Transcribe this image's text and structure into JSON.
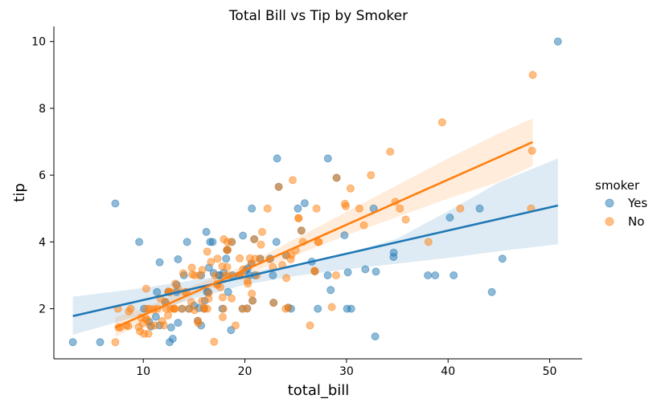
{
  "chart_data": {
    "type": "scatter",
    "title": "Total Bill vs Tip by Smoker",
    "xlabel": "total_bill",
    "ylabel": "tip",
    "xlim": [
      1.2,
      53.2
    ],
    "ylim": [
      0.5,
      10.45
    ],
    "xticks": [
      10,
      20,
      30,
      40,
      50
    ],
    "yticks": [
      2,
      4,
      6,
      8,
      10
    ],
    "grid": false,
    "legend": {
      "title": "smoker",
      "placement": "right"
    },
    "series": [
      {
        "name": "Yes",
        "color": "#1f77b4",
        "points": [
          [
            3.07,
            1.0
          ],
          [
            5.75,
            1.0
          ],
          [
            7.25,
            5.15
          ],
          [
            9.6,
            4.0
          ],
          [
            10.07,
            2.0
          ],
          [
            10.59,
            1.61
          ],
          [
            10.77,
            1.47
          ],
          [
            11.24,
            1.76
          ],
          [
            11.35,
            2.5
          ],
          [
            11.61,
            3.39
          ],
          [
            11.59,
            1.5
          ],
          [
            12.16,
            2.2
          ],
          [
            12.46,
            2.5
          ],
          [
            12.6,
            1.0
          ],
          [
            12.9,
            1.1
          ],
          [
            12.74,
            1.44
          ],
          [
            13.27,
            2.5
          ],
          [
            13.28,
            2.72
          ],
          [
            13.42,
            3.48
          ],
          [
            13.42,
            1.58
          ],
          [
            13.81,
            2.0
          ],
          [
            14.0,
            3.0
          ],
          [
            14.31,
            4.0
          ],
          [
            14.48,
            2.0
          ],
          [
            15.01,
            2.09
          ],
          [
            15.36,
            1.64
          ],
          [
            15.69,
            3.0
          ],
          [
            15.69,
            1.5
          ],
          [
            15.48,
            2.02
          ],
          [
            16.0,
            2.0
          ],
          [
            16.04,
            2.24
          ],
          [
            16.27,
            2.5
          ],
          [
            16.4,
            2.5
          ],
          [
            16.47,
            3.23
          ],
          [
            16.58,
            4.0
          ],
          [
            16.93,
            3.07
          ],
          [
            16.21,
            4.3
          ],
          [
            16.82,
            4.0
          ],
          [
            17.46,
            3.0
          ],
          [
            17.51,
            3.0
          ],
          [
            17.78,
            2.0
          ],
          [
            17.92,
            3.08
          ],
          [
            18.15,
            3.5
          ],
          [
            18.24,
            3.76
          ],
          [
            18.29,
            3.76
          ],
          [
            18.35,
            2.5
          ],
          [
            18.64,
            1.36
          ],
          [
            18.71,
            4.0
          ],
          [
            18.78,
            3.0
          ],
          [
            19.44,
            3.0
          ],
          [
            19.81,
            4.19
          ],
          [
            19.77,
            2.0
          ],
          [
            20.08,
            3.15
          ],
          [
            20.23,
            2.01
          ],
          [
            20.29,
            3.21
          ],
          [
            20.45,
            3.0
          ],
          [
            20.65,
            3.35
          ],
          [
            20.69,
            5.0
          ],
          [
            20.76,
            2.24
          ],
          [
            21.01,
            3.0
          ],
          [
            20.92,
            4.08
          ],
          [
            21.5,
            3.5
          ],
          [
            22.49,
            3.5
          ],
          [
            22.76,
            3.0
          ],
          [
            22.82,
            2.18
          ],
          [
            23.1,
            4.0
          ],
          [
            23.33,
            5.65
          ],
          [
            23.17,
            6.5
          ],
          [
            24.06,
            3.6
          ],
          [
            24.27,
            2.03
          ],
          [
            24.55,
            2.0
          ],
          [
            25.21,
            5.0
          ],
          [
            25.56,
            4.34
          ],
          [
            25.89,
            5.16
          ],
          [
            26.59,
            3.41
          ],
          [
            26.88,
            3.12
          ],
          [
            27.18,
            2.0
          ],
          [
            28.15,
            3.0
          ],
          [
            28.17,
            6.5
          ],
          [
            28.44,
            2.56
          ],
          [
            29.03,
            5.92
          ],
          [
            29.8,
            4.2
          ],
          [
            30.06,
            2.0
          ],
          [
            30.14,
            3.09
          ],
          [
            30.46,
            2.0
          ],
          [
            31.85,
            3.18
          ],
          [
            32.68,
            5.0
          ],
          [
            32.83,
            1.17
          ],
          [
            32.9,
            3.11
          ],
          [
            34.63,
            3.55
          ],
          [
            34.65,
            3.68
          ],
          [
            38.01,
            3.0
          ],
          [
            38.73,
            3.0
          ],
          [
            40.17,
            4.73
          ],
          [
            40.55,
            3.0
          ],
          [
            43.11,
            5.0
          ],
          [
            44.3,
            2.5
          ],
          [
            45.35,
            3.5
          ],
          [
            50.81,
            10.0
          ]
        ]
      },
      {
        "name": "No",
        "color": "#ff7f0e",
        "points": [
          [
            7.25,
            1.0
          ],
          [
            7.51,
            2.0
          ],
          [
            7.56,
            1.44
          ],
          [
            7.74,
            1.44
          ],
          [
            8.35,
            1.5
          ],
          [
            8.52,
            1.48
          ],
          [
            8.58,
            1.92
          ],
          [
            8.77,
            2.0
          ],
          [
            9.55,
            1.45
          ],
          [
            9.68,
            1.32
          ],
          [
            9.78,
            1.73
          ],
          [
            9.94,
            1.56
          ],
          [
            10.07,
            1.25
          ],
          [
            10.27,
            1.71
          ],
          [
            10.29,
            2.6
          ],
          [
            10.33,
            2.0
          ],
          [
            10.34,
            1.66
          ],
          [
            10.51,
            1.25
          ],
          [
            10.63,
            2.0
          ],
          [
            10.65,
            1.5
          ],
          [
            11.02,
            1.98
          ],
          [
            11.17,
            1.5
          ],
          [
            11.38,
            2.0
          ],
          [
            11.69,
            2.31
          ],
          [
            11.87,
            1.63
          ],
          [
            12.03,
            1.5
          ],
          [
            12.16,
            2.2
          ],
          [
            12.26,
            2.0
          ],
          [
            12.43,
            1.8
          ],
          [
            12.48,
            2.52
          ],
          [
            12.54,
            2.5
          ],
          [
            12.66,
            2.5
          ],
          [
            12.69,
            2.0
          ],
          [
            13.0,
            2.0
          ],
          [
            13.03,
            2.0
          ],
          [
            13.13,
            2.0
          ],
          [
            13.16,
            2.75
          ],
          [
            13.39,
            2.61
          ],
          [
            13.81,
            2.0
          ],
          [
            13.94,
            3.06
          ],
          [
            14.07,
            2.5
          ],
          [
            14.26,
            2.5
          ],
          [
            14.52,
            2.0
          ],
          [
            14.73,
            2.2
          ],
          [
            14.78,
            3.23
          ],
          [
            14.83,
            3.02
          ],
          [
            15.04,
            1.96
          ],
          [
            15.06,
            3.0
          ],
          [
            15.36,
            1.64
          ],
          [
            15.42,
            1.57
          ],
          [
            15.53,
            3.0
          ],
          [
            15.77,
            2.23
          ],
          [
            15.81,
            3.16
          ],
          [
            15.98,
            2.03
          ],
          [
            16.0,
            2.0
          ],
          [
            16.29,
            3.71
          ],
          [
            16.31,
            2.0
          ],
          [
            16.43,
            2.3
          ],
          [
            16.45,
            2.47
          ],
          [
            16.66,
            3.4
          ],
          [
            16.97,
            1.01
          ],
          [
            17.07,
            3.0
          ],
          [
            17.26,
            2.74
          ],
          [
            17.29,
            2.71
          ],
          [
            17.31,
            3.5
          ],
          [
            17.59,
            2.64
          ],
          [
            17.78,
            3.27
          ],
          [
            17.81,
            2.34
          ],
          [
            17.82,
            1.75
          ],
          [
            17.89,
            2.0
          ],
          [
            17.92,
            4.08
          ],
          [
            18.04,
            3.0
          ],
          [
            18.24,
            3.76
          ],
          [
            18.26,
            3.25
          ],
          [
            18.28,
            4.0
          ],
          [
            18.29,
            3.76
          ],
          [
            18.43,
            3.0
          ],
          [
            18.69,
            2.31
          ],
          [
            18.71,
            4.0
          ],
          [
            19.08,
            1.5
          ],
          [
            19.44,
            3.0
          ],
          [
            19.49,
            3.51
          ],
          [
            19.65,
            3.0
          ],
          [
            19.77,
            2.0
          ],
          [
            19.82,
            3.18
          ],
          [
            20.23,
            2.01
          ],
          [
            20.27,
            2.83
          ],
          [
            20.29,
            2.75
          ],
          [
            20.49,
            3.51
          ],
          [
            20.65,
            3.35
          ],
          [
            20.69,
            2.45
          ],
          [
            20.76,
            2.24
          ],
          [
            20.92,
            4.08
          ],
          [
            21.01,
            3.5
          ],
          [
            21.16,
            3.0
          ],
          [
            21.5,
            3.5
          ],
          [
            21.58,
            3.92
          ],
          [
            21.7,
            4.3
          ],
          [
            22.23,
            5.0
          ],
          [
            22.42,
            3.48
          ],
          [
            22.75,
            3.25
          ],
          [
            22.82,
            2.18
          ],
          [
            23.33,
            5.65
          ],
          [
            23.68,
            3.31
          ],
          [
            24.01,
            2.0
          ],
          [
            24.08,
            2.92
          ],
          [
            24.06,
            3.6
          ],
          [
            24.27,
            2.03
          ],
          [
            24.52,
            3.48
          ],
          [
            24.59,
            3.61
          ],
          [
            24.71,
            5.85
          ],
          [
            25.0,
            3.75
          ],
          [
            25.28,
            4.71
          ],
          [
            25.29,
            4.71
          ],
          [
            25.56,
            4.34
          ],
          [
            25.71,
            4.0
          ],
          [
            26.41,
            1.5
          ],
          [
            26.86,
            3.14
          ],
          [
            26.88,
            3.12
          ],
          [
            27.05,
            5.0
          ],
          [
            27.2,
            4.0
          ],
          [
            27.28,
            4.0
          ],
          [
            28.55,
            2.05
          ],
          [
            28.97,
            3.0
          ],
          [
            29.03,
            5.92
          ],
          [
            29.85,
            5.14
          ],
          [
            29.93,
            5.07
          ],
          [
            30.4,
            5.6
          ],
          [
            31.27,
            5.0
          ],
          [
            31.71,
            4.5
          ],
          [
            32.4,
            6.0
          ],
          [
            34.3,
            6.7
          ],
          [
            34.81,
            5.2
          ],
          [
            35.26,
            5.0
          ],
          [
            35.83,
            4.67
          ],
          [
            38.07,
            4.0
          ],
          [
            39.42,
            7.58
          ],
          [
            41.19,
            5.0
          ],
          [
            48.17,
            5.0
          ],
          [
            48.27,
            6.73
          ],
          [
            48.33,
            9.0
          ]
        ]
      }
    ],
    "fits": [
      {
        "series": "Yes",
        "color": "#1f77b4",
        "x": [
          3.07,
          50.81
        ],
        "y": [
          1.78,
          5.09
        ],
        "band_x": [
          3.07,
          10,
          15,
          20,
          25,
          30,
          35,
          40,
          45,
          50.81
        ],
        "band_lo": [
          1.22,
          1.82,
          2.3,
          2.72,
          2.98,
          3.18,
          3.35,
          3.52,
          3.72,
          3.93
        ],
        "band_hi": [
          2.36,
          2.62,
          2.86,
          3.08,
          3.33,
          3.66,
          4.1,
          4.92,
          5.78,
          6.5
        ]
      },
      {
        "series": "No",
        "color": "#ff7f0e",
        "x": [
          7.25,
          48.33
        ],
        "y": [
          1.44,
          6.99
        ],
        "band_x": [
          7.25,
          10,
          15,
          20,
          25,
          30,
          35,
          40,
          45,
          48.33
        ],
        "band_lo": [
          1.15,
          1.6,
          2.4,
          3.0,
          3.6,
          4.2,
          4.75,
          5.3,
          5.8,
          6.28
        ],
        "band_hi": [
          1.75,
          2.0,
          2.7,
          3.3,
          4.1,
          4.9,
          5.7,
          6.5,
          7.25,
          7.7
        ]
      }
    ]
  }
}
